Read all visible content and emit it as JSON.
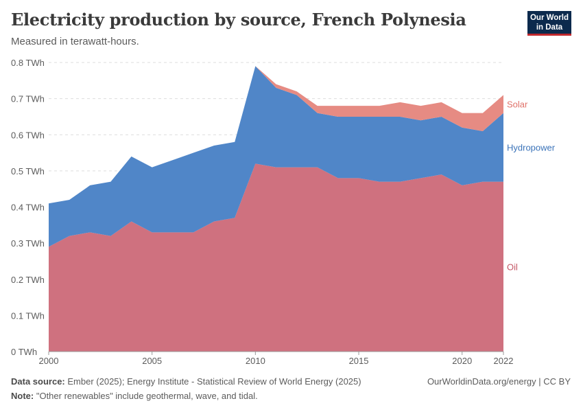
{
  "header": {
    "title": "Electricity production by source, French Polynesia",
    "subtitle": "Measured in terawatt-hours."
  },
  "logo": {
    "line1": "Our World",
    "line2": "in Data"
  },
  "footer": {
    "source_label": "Data source:",
    "source_text": "Ember (2025); Energy Institute - Statistical Review of World Energy (2025)",
    "note_label": "Note:",
    "note_text": "\"Other renewables\" include geothermal, wave, and tidal.",
    "credit": "OurWorldinData.org/energy | CC BY"
  },
  "chart_data": {
    "type": "area",
    "stacked": true,
    "x": [
      2000,
      2001,
      2002,
      2003,
      2004,
      2005,
      2006,
      2007,
      2008,
      2009,
      2010,
      2011,
      2012,
      2013,
      2014,
      2015,
      2016,
      2017,
      2018,
      2019,
      2020,
      2021,
      2022
    ],
    "series": [
      {
        "name": "Oil",
        "color": "#cf717f",
        "values": [
          0.29,
          0.32,
          0.33,
          0.32,
          0.36,
          0.33,
          0.33,
          0.33,
          0.36,
          0.37,
          0.52,
          0.51,
          0.51,
          0.51,
          0.48,
          0.48,
          0.47,
          0.47,
          0.48,
          0.49,
          0.46,
          0.47,
          0.47
        ]
      },
      {
        "name": "Hydropower",
        "color": "#5086c8",
        "values": [
          0.12,
          0.1,
          0.13,
          0.15,
          0.18,
          0.18,
          0.2,
          0.22,
          0.21,
          0.21,
          0.27,
          0.22,
          0.2,
          0.15,
          0.17,
          0.17,
          0.18,
          0.18,
          0.16,
          0.16,
          0.16,
          0.14,
          0.19
        ]
      },
      {
        "name": "Solar",
        "color": "#e68b83",
        "values": [
          0.0,
          0.0,
          0.0,
          0.0,
          0.0,
          0.0,
          0.0,
          0.0,
          0.0,
          0.0,
          0.0,
          0.01,
          0.01,
          0.02,
          0.03,
          0.03,
          0.03,
          0.04,
          0.04,
          0.04,
          0.04,
          0.05,
          0.05
        ]
      }
    ],
    "label_colors": {
      "Oil": "#c45565",
      "Hydropower": "#3b73b9",
      "Solar": "#e0726a"
    },
    "ylim": [
      0,
      0.8
    ],
    "yticks": [
      0,
      0.1,
      0.2,
      0.3,
      0.4,
      0.5,
      0.6,
      0.7,
      0.8
    ],
    "ytick_labels": [
      "0 TWh",
      "0.1 TWh",
      "0.2 TWh",
      "0.3 TWh",
      "0.4 TWh",
      "0.5 TWh",
      "0.6 TWh",
      "0.7 TWh",
      "0.8 TWh"
    ],
    "xticks": [
      2000,
      2005,
      2010,
      2015,
      2020,
      2022
    ],
    "xtick_labels": [
      "2000",
      "2005",
      "2010",
      "2015",
      "2020",
      "2022"
    ],
    "grid": true,
    "legend": "right, inline labels"
  }
}
